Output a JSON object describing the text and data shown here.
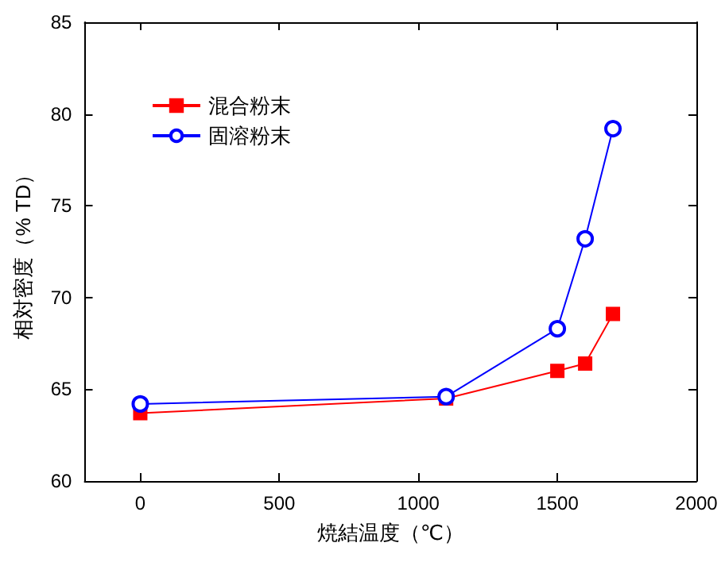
{
  "chart_data": {
    "type": "line",
    "xlabel": "焼結温度（℃）",
    "ylabel": "相対密度（% TD）",
    "x": [
      0,
      1100,
      1500,
      1600,
      1700
    ],
    "series": [
      {
        "name": "混合粉末",
        "color": "#ff0000",
        "marker": "square",
        "values": [
          63.7,
          64.5,
          66.0,
          66.4,
          69.1
        ]
      },
      {
        "name": "固溶粉末",
        "color": "#0000ff",
        "marker": "circle",
        "values": [
          64.2,
          64.6,
          68.3,
          73.2,
          79.2
        ]
      }
    ],
    "xlim": [
      -200,
      2000
    ],
    "xticks": [
      0,
      500,
      1000,
      1500,
      2000
    ],
    "ylim": [
      60,
      85
    ],
    "yticks": [
      60,
      65,
      70,
      75,
      80,
      85
    ],
    "grid": false,
    "legend": "top left",
    "line_style": "solid"
  }
}
